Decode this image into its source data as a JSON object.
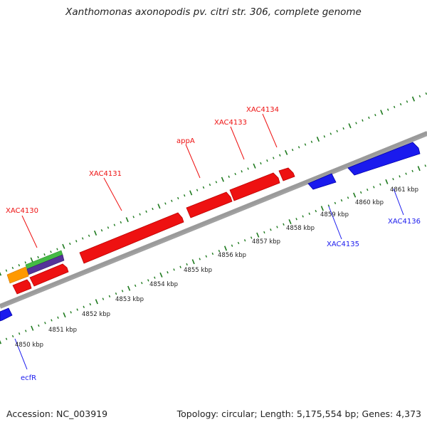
{
  "title": "Xanthomonas axonopodis pv. citri str. 306, complete genome",
  "footer": {
    "accession": "Accession: NC_003919",
    "summary": "Topology: circular; Length: 5,175,554 bp; Genes: 4,373"
  },
  "colors": {
    "forward_gene": "#ff0000",
    "reverse_gene": "#0000ff",
    "backbone": "#8a8a8a",
    "tick": "#1e7a1e",
    "track_green": "#44bb44",
    "track_purple": "#553399",
    "track_orange": "#ff9900"
  },
  "ruler": {
    "unit": "kbp",
    "labels": [
      "4850 kbp",
      "4851 kbp",
      "4852 kbp",
      "4853 kbp",
      "4854 kbp",
      "4855 kbp",
      "4856 kbp",
      "4857 kbp",
      "4858 kbp",
      "4859 kbp",
      "4860 kbp",
      "4861 kbp"
    ]
  },
  "forward_labels": [
    "XAC4130",
    "XAC4131",
    "appA",
    "XAC4133",
    "XAC4134"
  ],
  "reverse_labels": [
    "ecfR",
    "XAC4135",
    "XAC4136"
  ],
  "track_legend_colors": [
    "green",
    "purple",
    "orange"
  ]
}
